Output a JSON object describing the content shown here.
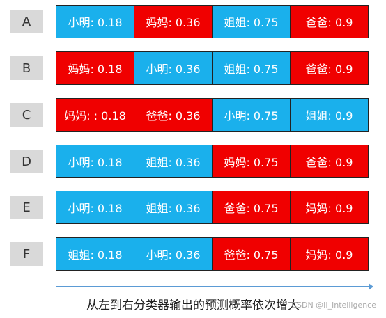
{
  "colors": {
    "blue": "#1ab0ec",
    "red": "#f00000"
  },
  "rows": [
    {
      "label": "A",
      "cells": [
        {
          "text": "小明: 0.18",
          "color": "blue"
        },
        {
          "text": "妈妈: 0.36",
          "color": "red"
        },
        {
          "text": "姐姐: 0.75",
          "color": "blue"
        },
        {
          "text": "爸爸: 0.9",
          "color": "red"
        }
      ]
    },
    {
      "label": "B",
      "cells": [
        {
          "text": "妈妈: 0.18",
          "color": "red"
        },
        {
          "text": "小明: 0.36",
          "color": "blue"
        },
        {
          "text": "姐姐: 0.75",
          "color": "blue"
        },
        {
          "text": "爸爸: 0.9",
          "color": "red"
        }
      ]
    },
    {
      "label": "C",
      "cells": [
        {
          "text": "妈妈: : 0.18",
          "color": "red"
        },
        {
          "text": "爸爸: 0.36",
          "color": "red"
        },
        {
          "text": "小明: 0.75",
          "color": "blue"
        },
        {
          "text": "姐姐: 0.9",
          "color": "blue"
        }
      ]
    },
    {
      "label": "D",
      "cells": [
        {
          "text": "小明: 0.18",
          "color": "blue"
        },
        {
          "text": "姐姐: 0.36",
          "color": "blue"
        },
        {
          "text": "妈妈: 0.75",
          "color": "red"
        },
        {
          "text": "爸爸: 0.9",
          "color": "red"
        }
      ]
    },
    {
      "label": "E",
      "cells": [
        {
          "text": "小明:  0.18",
          "color": "blue"
        },
        {
          "text": "姐姐: 0.36",
          "color": "blue"
        },
        {
          "text": "爸爸: 0.75",
          "color": "red"
        },
        {
          "text": "妈妈: 0.9",
          "color": "red"
        }
      ]
    },
    {
      "label": "F",
      "cells": [
        {
          "text": "姐姐: 0.18",
          "color": "blue"
        },
        {
          "text": "小明: 0.36",
          "color": "blue"
        },
        {
          "text": "爸爸: 0.75",
          "color": "red"
        },
        {
          "text": "妈妈: 0.9",
          "color": "red"
        }
      ]
    }
  ],
  "caption": "从左到右分类器输出的预测概率依次增大",
  "watermark": "CSDN @II_intelligence"
}
